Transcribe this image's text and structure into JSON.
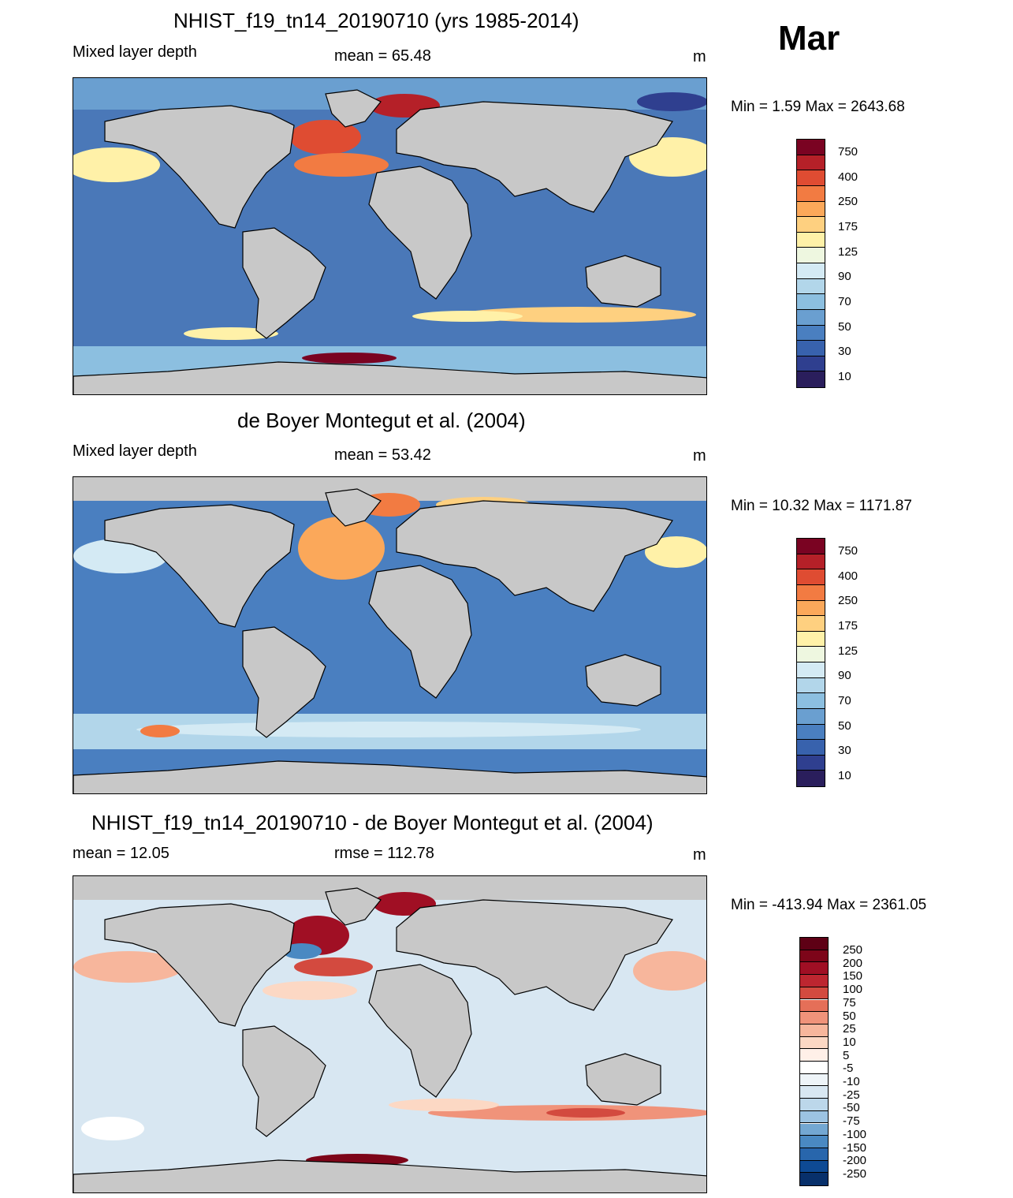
{
  "month": "Mar",
  "colors": {
    "land": "#c8c8c8",
    "ocean_fill": "#4a78b8",
    "seq_levels": [
      "#2a1e5c",
      "#2f3f8f",
      "#3862ad",
      "#4a7fc0",
      "#6a9fd0",
      "#8cbfe0",
      "#b2d6ea",
      "#d4eaf4",
      "#eef7e0",
      "#fff1a8",
      "#fed080",
      "#fba85a",
      "#f27b42",
      "#df4c32",
      "#b52028",
      "#7a0322"
    ],
    "div_levels": [
      "#08306b",
      "#0e4a94",
      "#2866ac",
      "#4a89c2",
      "#73a7d2",
      "#9cc3e2",
      "#bcd7ea",
      "#d8e7f2",
      "#eef4f8",
      "#ffffff",
      "#fff0e8",
      "#fcd8c4",
      "#f7b69c",
      "#f0937a",
      "#e56f58",
      "#d34a3f",
      "#bd2630",
      "#a00f24",
      "#7d0519",
      "#5e0015"
    ]
  },
  "panels": [
    {
      "title": "NHIST_f19_tn14_20190710 (yrs 1985-2014)",
      "left_label": "Mixed layer depth",
      "center_label": "mean =  65.48",
      "units": "m",
      "minmax": "Min =    1.59 Max = 2643.68",
      "colorbar_labels": [
        "750",
        "400",
        "250",
        "175",
        "125",
        "90",
        "70",
        "50",
        "30",
        "10"
      ]
    },
    {
      "title": "de Boyer Montegut et al. (2004)",
      "left_label": "Mixed layer depth",
      "center_label": "mean =  53.42",
      "units": "m",
      "minmax": "Min =  10.32 Max = 1171.87",
      "colorbar_labels": [
        "750",
        "400",
        "250",
        "175",
        "125",
        "90",
        "70",
        "50",
        "30",
        "10"
      ]
    },
    {
      "title": "NHIST_f19_tn14_20190710 - de Boyer Montegut et al. (2004)",
      "left_label": "mean =  12.05",
      "center_label": "rmse = 112.78",
      "units": "m",
      "minmax": "Min = -413.94 Max = 2361.05",
      "colorbar_labels": [
        "250",
        "200",
        "150",
        "100",
        "75",
        "50",
        "25",
        "10",
        "5",
        "-5",
        "-10",
        "-25",
        "-50",
        "-75",
        "-100",
        "-150",
        "-200",
        "-250"
      ]
    }
  ]
}
